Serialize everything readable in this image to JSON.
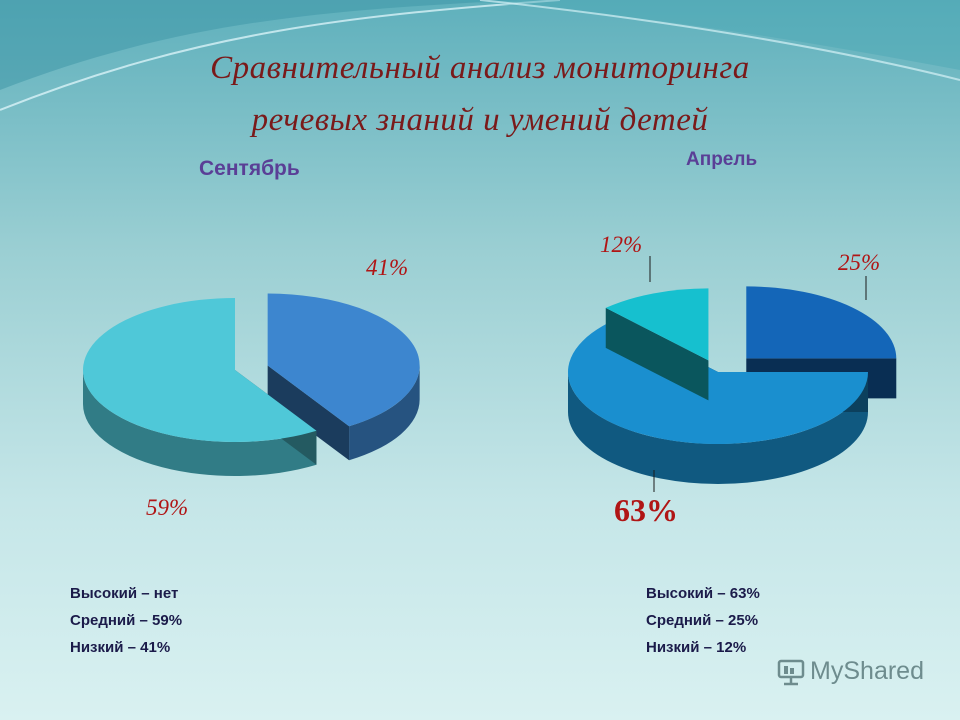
{
  "title_line1": "Сравнительный анализ мониторинга",
  "title_line2": "речевых знаний и умений детей",
  "watermark": "MyShared",
  "chart_data": [
    {
      "type": "pie",
      "subtitle": "Сентябрь",
      "slices": [
        {
          "label": "41%",
          "value": 41,
          "color": "#3d86cf"
        },
        {
          "label": "59%",
          "value": 59,
          "color": "#4fc8d8"
        }
      ],
      "legend": [
        "Высокий – нет",
        "Средний – 59%",
        "Низкий – 41%"
      ]
    },
    {
      "type": "pie",
      "subtitle": "Апрель",
      "slices": [
        {
          "label": "25%",
          "value": 25,
          "color": "#1466b8"
        },
        {
          "label": "63%",
          "value": 63,
          "color": "#1a8fcf"
        },
        {
          "label": "12%",
          "value": 12,
          "color": "#16c0cf"
        }
      ],
      "legend": [
        "Высокий – 63%",
        "Средний – 25%",
        "Низкий – 12%"
      ]
    }
  ]
}
